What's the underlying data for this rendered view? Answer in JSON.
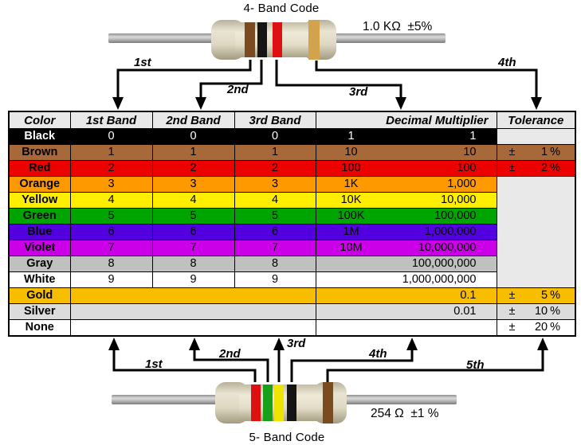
{
  "top_resistor": {
    "title": "4- Band Code",
    "value_label": "1.0 KΩ  ±5%",
    "bands": [
      {
        "name": "brown",
        "hex": "#7B4A1E"
      },
      {
        "name": "black",
        "hex": "#151515"
      },
      {
        "name": "red",
        "hex": "#DD1111"
      },
      {
        "name": "gold",
        "hex": "#D2A24C"
      }
    ],
    "arrow_labels": [
      "1st",
      "2nd",
      "3rd",
      "4th"
    ]
  },
  "bottom_resistor": {
    "title": "5- Band Code",
    "value_label": "254 Ω  ±1 %",
    "bands": [
      {
        "name": "red",
        "hex": "#DD1111"
      },
      {
        "name": "green",
        "hex": "#18A018"
      },
      {
        "name": "yellow",
        "hex": "#EFE400"
      },
      {
        "name": "black",
        "hex": "#151515"
      },
      {
        "name": "brown",
        "hex": "#7B4A1E"
      }
    ],
    "arrow_labels": [
      "1st",
      "2nd",
      "3rd",
      "4th",
      "5th"
    ]
  },
  "table": {
    "header_bg": "#E8E8E8",
    "empty_tolerance_bg": "#E9E9E9",
    "headers": [
      "Color",
      "1st Band",
      "2nd Band",
      "3rd Band",
      "Decimal Multiplier",
      "Tolerance"
    ],
    "rows": [
      {
        "color": "Black",
        "bg": "#000000",
        "fg": "#FFFFFF",
        "band1": "0",
        "band2": "0",
        "band3": "0",
        "merged_bands": false,
        "mult_short": "1",
        "mult_full": "1",
        "tol_sign": "",
        "tol_value": "",
        "tol_unit": ""
      },
      {
        "color": "Brown",
        "bg": "#A7683A",
        "fg": "#000000",
        "band1": "1",
        "band2": "1",
        "band3": "1",
        "merged_bands": false,
        "mult_short": "10",
        "mult_full": "10",
        "tol_sign": "±",
        "tol_value": "1",
        "tol_unit": "%"
      },
      {
        "color": "Red",
        "bg": "#ED0000",
        "fg": "#000000",
        "band1": "2",
        "band2": "2",
        "band3": "2",
        "merged_bands": false,
        "mult_short": "100",
        "mult_full": "100",
        "tol_sign": "±",
        "tol_value": "2",
        "tol_unit": "%"
      },
      {
        "color": "Orange",
        "bg": "#FF9900",
        "fg": "#000000",
        "band1": "3",
        "band2": "3",
        "band3": "3",
        "merged_bands": false,
        "mult_short": "1K",
        "mult_full": "1,000",
        "tol_sign": "",
        "tol_value": "",
        "tol_unit": ""
      },
      {
        "color": "Yellow",
        "bg": "#FFEE00",
        "fg": "#000000",
        "band1": "4",
        "band2": "4",
        "band3": "4",
        "merged_bands": false,
        "mult_short": "10K",
        "mult_full": "10,000",
        "tol_sign": "",
        "tol_value": "",
        "tol_unit": ""
      },
      {
        "color": "Green",
        "bg": "#00A400",
        "fg": "#000000",
        "band1": "5",
        "band2": "5",
        "band3": "5",
        "merged_bands": false,
        "mult_short": "100K",
        "mult_full": "100,000",
        "tol_sign": "",
        "tol_value": "",
        "tol_unit": ""
      },
      {
        "color": "Blue",
        "bg": "#5200E0",
        "fg": "#000000",
        "band1": "6",
        "band2": "6",
        "band3": "6",
        "merged_bands": false,
        "mult_short": "1M",
        "mult_full": "1,000,000",
        "tol_sign": "",
        "tol_value": "",
        "tol_unit": ""
      },
      {
        "color": "Violet",
        "bg": "#CC00E8",
        "fg": "#000000",
        "band1": "7",
        "band2": "7",
        "band3": "7",
        "merged_bands": false,
        "mult_short": "10M",
        "mult_full": "10,000,000",
        "tol_sign": "",
        "tol_value": "",
        "tol_unit": ""
      },
      {
        "color": "Gray",
        "bg": "#C0C0C0",
        "fg": "#000000",
        "band1": "8",
        "band2": "8",
        "band3": "8",
        "merged_bands": false,
        "mult_short": "",
        "mult_full": "100,000,000",
        "tol_sign": "",
        "tol_value": "",
        "tol_unit": ""
      },
      {
        "color": "White",
        "bg": "#FFFFFF",
        "fg": "#000000",
        "band1": "9",
        "band2": "9",
        "band3": "9",
        "merged_bands": false,
        "mult_short": "",
        "mult_full": "1,000,000,000",
        "tol_sign": "",
        "tol_value": "",
        "tol_unit": ""
      },
      {
        "color": "Gold",
        "bg": "#F7BE00",
        "fg": "#000000",
        "band1": "",
        "band2": "",
        "band3": "",
        "merged_bands": true,
        "mult_short": "",
        "mult_full": "0.1",
        "tol_sign": "±",
        "tol_value": "5",
        "tol_unit": "%"
      },
      {
        "color": "Silver",
        "bg": "#DCDCDC",
        "fg": "#000000",
        "band1": "",
        "band2": "",
        "band3": "",
        "merged_bands": true,
        "mult_short": "",
        "mult_full": "0.01",
        "tol_sign": "±",
        "tol_value": "10",
        "tol_unit": "%"
      },
      {
        "color": "None",
        "bg": "#FFFFFF",
        "fg": "#000000",
        "band1": "",
        "band2": "",
        "band3": "",
        "merged_bands": true,
        "mult_short": "",
        "mult_full": "",
        "tol_sign": "±",
        "tol_value": "20",
        "tol_unit": "%"
      }
    ]
  }
}
